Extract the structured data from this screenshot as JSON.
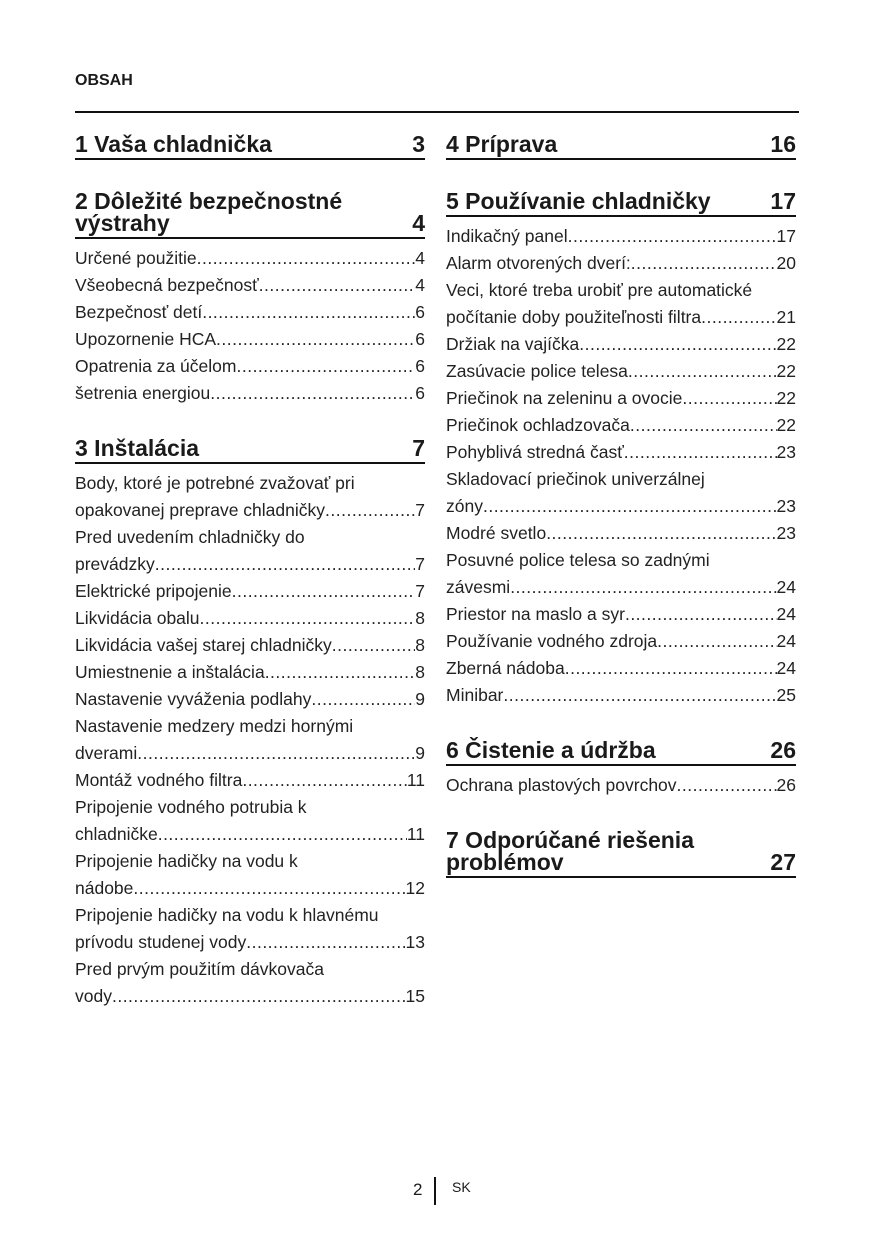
{
  "header": "OBSAH",
  "left": [
    {
      "title": [
        "1  Vaša chladnička"
      ],
      "page": "3",
      "entries": []
    },
    {
      "title": [
        "2  Dôležité bezpečnostné",
        "výstrahy"
      ],
      "page": "4",
      "entries": [
        {
          "lines": [
            "Určené použitie"
          ],
          "page": "4"
        },
        {
          "lines": [
            "Všeobecná bezpečnosť"
          ],
          "page": "4"
        },
        {
          "lines": [
            "Bezpečnosť detí "
          ],
          "page": "6"
        },
        {
          "lines": [
            "Upozornenie HCA"
          ],
          "page": "6"
        },
        {
          "lines": [
            "Opatrenia za účelom "
          ],
          "page": "6"
        },
        {
          "lines": [
            "šetrenia energiou"
          ],
          "page": "6"
        }
      ]
    },
    {
      "title": [
        "3  Inštalácia"
      ],
      "page": "7",
      "entries": [
        {
          "lines": [
            "Body, ktoré je potrebné zvažovať pri",
            "opakovanej preprave chladničky"
          ],
          "page": "7"
        },
        {
          "lines": [
            "Pred uvedením chladničky do",
            "prevádzky"
          ],
          "page": "7"
        },
        {
          "lines": [
            "Elektrické pripojenie"
          ],
          "page": "7"
        },
        {
          "lines": [
            "Likvidácia obalu"
          ],
          "page": "8"
        },
        {
          "lines": [
            "Likvidácia vašej starej chladničky"
          ],
          "page": "8"
        },
        {
          "lines": [
            "Umiestnenie a inštalácia "
          ],
          "page": "8"
        },
        {
          "lines": [
            "Nastavenie vyváženia podlahy "
          ],
          "page": "9"
        },
        {
          "lines": [
            "Nastavenie medzery medzi hornými",
            "dverami "
          ],
          "page": "9"
        },
        {
          "lines": [
            "Montáž vodného filtra "
          ],
          "page": "11"
        },
        {
          "lines": [
            "Pripojenie vodného potrubia k",
            "chladničke"
          ],
          "page": "11"
        },
        {
          "lines": [
            "Pripojenie hadičky na vodu k",
            "nádobe "
          ],
          "page": "12"
        },
        {
          "lines": [
            "Pripojenie hadičky na vodu k hlavnému",
            "prívodu studenej vody  "
          ],
          "page": "13"
        },
        {
          "lines": [
            "Pred prvým použitím dávkovača",
            "vody "
          ],
          "page": "15"
        }
      ]
    }
  ],
  "right": [
    {
      "title": [
        "4  Príprava"
      ],
      "page": "16",
      "entries": []
    },
    {
      "title": [
        "5  Používanie chladničky"
      ],
      "page": "17",
      "entries": [
        {
          "lines": [
            "Indikačný panel"
          ],
          "page": "17"
        },
        {
          "lines": [
            "Alarm otvorených dverí:  "
          ],
          "page": "20"
        },
        {
          "lines": [
            "Veci, ktoré treba urobiť pre automatické",
            "počítanie doby použiteľnosti filtra"
          ],
          "page": "21"
        },
        {
          "lines": [
            "Držiak na vajíčka"
          ],
          "page": "22"
        },
        {
          "lines": [
            "Zasúvacie police telesa"
          ],
          "page": "22"
        },
        {
          "lines": [
            "Priečinok na zeleninu a ovocie "
          ],
          "page": "22"
        },
        {
          "lines": [
            "Priečinok ochladzovača"
          ],
          "page": "22"
        },
        {
          "lines": [
            "Pohyblivá stredná časť  "
          ],
          "page": "23"
        },
        {
          "lines": [
            "Skladovací priečinok univerzálnej",
            "zóny  "
          ],
          "page": "23"
        },
        {
          "lines": [
            "Modré svetlo"
          ],
          "page": "23"
        },
        {
          "lines": [
            "Posuvné police telesa so zadnými",
            "závesmi "
          ],
          "page": "24"
        },
        {
          "lines": [
            "Priestor na maslo a syr "
          ],
          "page": "24"
        },
        {
          "lines": [
            "Používanie vodného zdroja "
          ],
          "page": "24"
        },
        {
          "lines": [
            "Zberná nádoba"
          ],
          "page": "24"
        },
        {
          "lines": [
            "Minibar "
          ],
          "page": "25"
        }
      ]
    },
    {
      "title": [
        "6  Čistenie a údržba"
      ],
      "page": "26",
      "entries": [
        {
          "lines": [
            "Ochrana plastových povrchov  "
          ],
          "page": "26"
        }
      ]
    },
    {
      "title": [
        "7  Odporúčané riešenia",
        "problémov"
      ],
      "page": "27",
      "entries": []
    }
  ],
  "footer": {
    "page": "2",
    "lang": "SK"
  }
}
